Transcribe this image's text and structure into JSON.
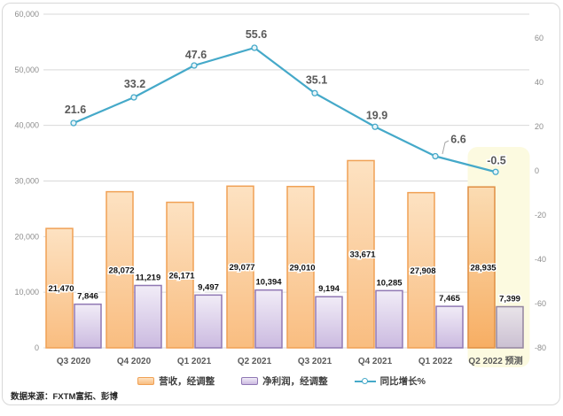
{
  "meta": {
    "source_note": "数据来源：FXTM富拓、彭博"
  },
  "chart_data": {
    "type": "combo-bar-line",
    "categories": [
      "Q3 2020",
      "Q4 2020",
      "Q1 2021",
      "Q2 2021",
      "Q3 2021",
      "Q4 2021",
      "Q1 2022",
      "Q2 2022 预测"
    ],
    "series": [
      {
        "name": "营收，经调整",
        "type": "bar",
        "axis": "left",
        "values": [
          21470,
          28072,
          26171,
          29077,
          29010,
          33671,
          27908,
          28935
        ],
        "labels": [
          "21,470",
          "28,072",
          "26,171",
          "29,077",
          "29,010",
          "33,671",
          "27,908",
          "28,935"
        ],
        "fill_top": "#FDE2C2",
        "fill_bottom": "#F9BD80",
        "border": "#F0A155",
        "forecast_fill_top": "#FBDCB3",
        "forecast_fill_bottom": "#F7AE63",
        "forecast_border": "#E08F43"
      },
      {
        "name": "净利润，经调整",
        "type": "bar",
        "axis": "left",
        "values": [
          7846,
          11219,
          9497,
          10394,
          9194,
          10285,
          7465,
          7399
        ],
        "labels": [
          "7,846",
          "11,219",
          "9,497",
          "10,394",
          "9,194",
          "10,285",
          "7,465",
          "7,399"
        ],
        "fill_top": "#F1ECF7",
        "fill_bottom": "#CBBAE0",
        "border": "#9078B4",
        "forecast_fill_top": "#E9E4E9",
        "forecast_fill_bottom": "#CBC0D2",
        "forecast_border": "#94859F"
      },
      {
        "name": "同比增长%",
        "type": "line",
        "axis": "right",
        "values": [
          21.6,
          33.2,
          47.6,
          55.6,
          35.1,
          19.9,
          6.6,
          -0.5
        ],
        "labels": [
          "21.6",
          "33.2",
          "47.6",
          "55.6",
          "35.1",
          "19.9",
          "6.6",
          "-0.5"
        ],
        "color": "#45A9C9",
        "marker_fill": "#E8F4F8",
        "label_color": "#595959",
        "negative_label_color": "#FF0000"
      }
    ],
    "left_axis": {
      "min": 0,
      "max": 60000,
      "step": 10000,
      "tick_labels": [
        "0",
        "10,000",
        "20,000",
        "30,000",
        "40,000",
        "50,000",
        "60,000"
      ]
    },
    "right_axis": {
      "min": -80,
      "max": 60,
      "step": 20,
      "tick_labels": [
        "-80",
        "-60",
        "-40",
        "-20",
        "0",
        "20",
        "40",
        "60"
      ]
    },
    "grid": true,
    "legend_position": "bottom",
    "highlight": {
      "category_index": 7,
      "band_color": "#FCFAE0",
      "note": "预测"
    },
    "gridline_color": "#D9D9D9"
  }
}
